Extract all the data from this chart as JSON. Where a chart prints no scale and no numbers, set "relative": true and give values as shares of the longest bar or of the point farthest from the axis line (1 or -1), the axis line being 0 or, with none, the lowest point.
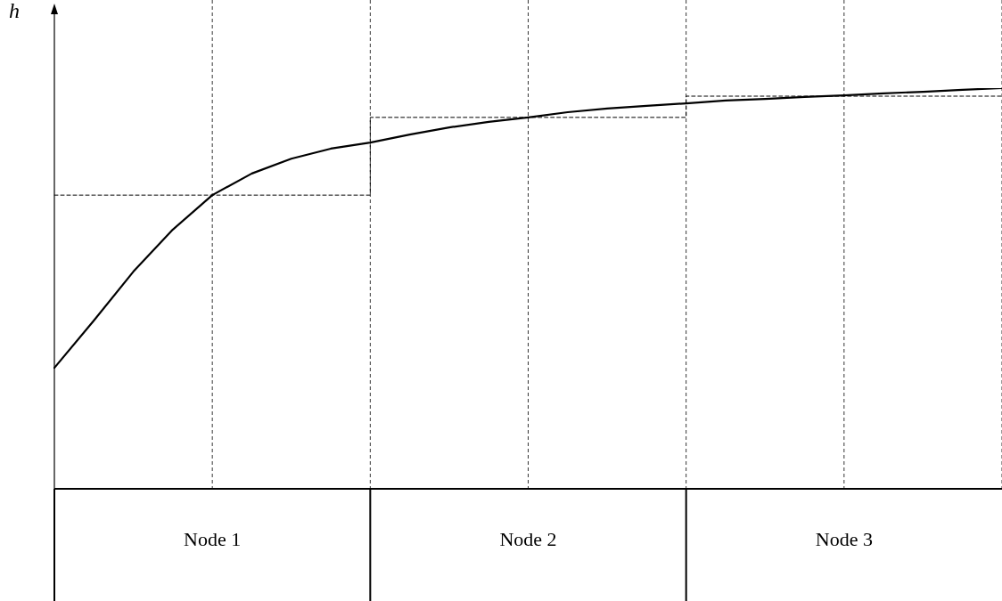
{
  "chart_data": {
    "type": "line",
    "relative": true,
    "ylabel": "h",
    "categories": [
      null,
      null,
      null,
      null,
      null,
      null,
      null,
      null,
      null,
      null,
      null,
      null,
      null,
      null,
      null,
      null,
      null,
      null,
      null,
      null,
      null,
      null,
      null,
      null,
      null
    ],
    "marker": "none",
    "grid": "x",
    "series": [
      {
        "type": "line",
        "color": "#000000",
        "line_style": "solid",
        "values": [
          0.302,
          0.42,
          0.542,
          0.647,
          0.733,
          0.787,
          0.824,
          0.849,
          0.864,
          0.884,
          0.902,
          0.916,
          0.927,
          0.94,
          0.949,
          0.956,
          0.962,
          0.969,
          0.973,
          0.978,
          0.982,
          0.987,
          0.991,
          0.996,
          1.0
        ]
      },
      {
        "type": "step",
        "color": "#000000",
        "line_style": "dashed",
        "values": [
          0.733,
          0.733,
          0.733,
          0.733,
          0.733,
          0.733,
          0.733,
          0.733,
          0.927,
          0.927,
          0.927,
          0.927,
          0.927,
          0.927,
          0.927,
          0.927,
          0.98,
          0.98,
          0.98,
          0.98,
          0.98,
          0.98,
          0.98,
          0.98,
          0.98
        ]
      }
    ],
    "annotations": [
      "Node 1",
      "Node 2",
      "Node 3"
    ]
  }
}
